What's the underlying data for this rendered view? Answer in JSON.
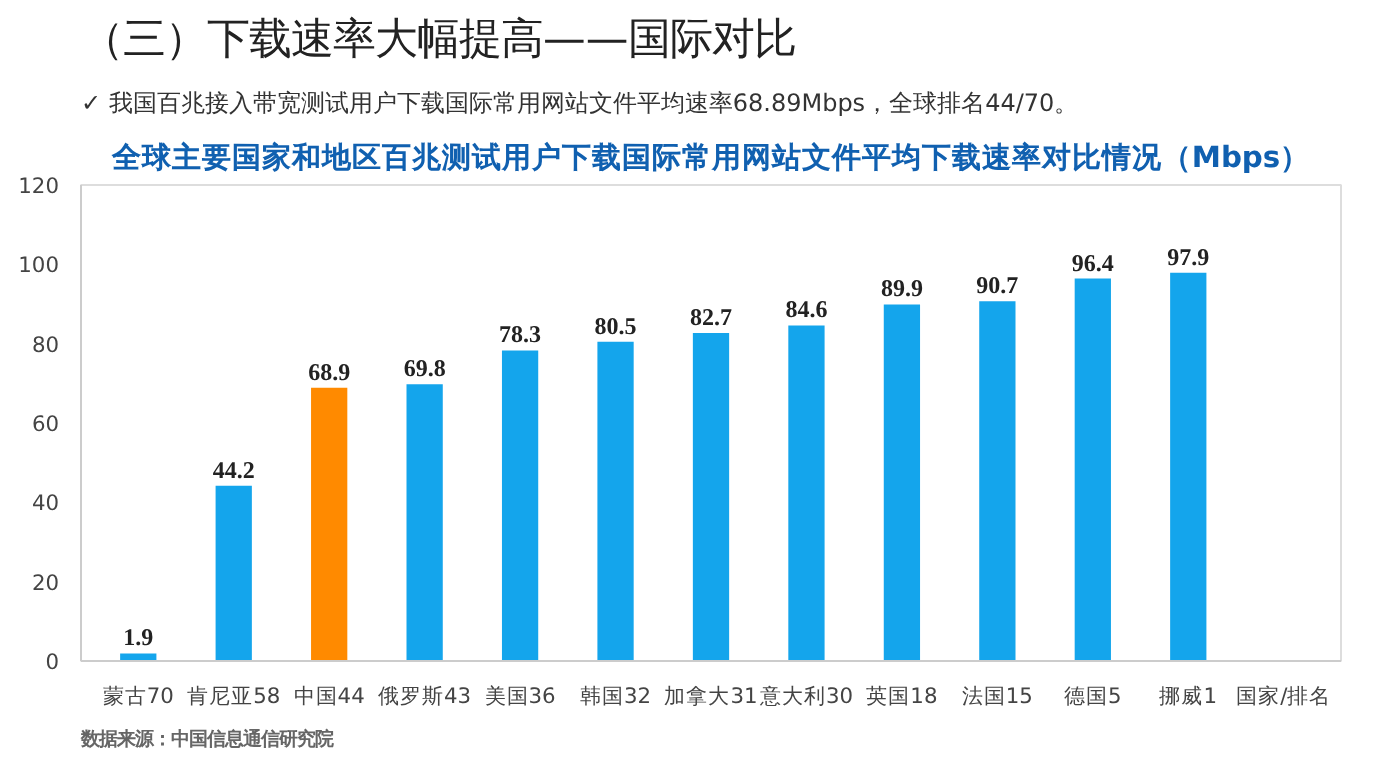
{
  "chart_data": {
    "type": "bar",
    "title": "（三）下载速率大幅提高——国际对比",
    "subtitle": "✓  我国百兆接入带宽测试用户下载国际常用网站文件平均速率68.89Mbps，全球排名44/70。",
    "annotations": [
      "全球主要国家和地区百兆测试用户下载国际常用网站文件平均下载速率对比情况（Mbps）",
      "数据来源：中国信息通信研究院"
    ],
    "xlabel": "国家/排名",
    "categories": [
      "蒙古70",
      "肯尼亚58",
      "中国44",
      "俄罗斯43",
      "美国36",
      "韩国32",
      "加拿大31",
      "意大利30",
      "英国18",
      "法国15",
      "德国5",
      "挪威1"
    ],
    "values": [
      1.9,
      44.2,
      68.9,
      69.8,
      78.3,
      80.5,
      82.7,
      84.6,
      89.9,
      90.7,
      96.4,
      97.9
    ],
    "colors": [
      "#14a5ec",
      "#14a5ec",
      "#ff8a00",
      "#14a5ec",
      "#14a5ec",
      "#14a5ec",
      "#14a5ec",
      "#14a5ec",
      "#14a5ec",
      "#14a5ec",
      "#14a5ec",
      "#14a5ec"
    ],
    "ylim": [
      0,
      120
    ],
    "yticks": [
      0,
      20,
      40,
      60,
      80,
      100,
      120
    ],
    "grid": false,
    "data_labels": true
  }
}
